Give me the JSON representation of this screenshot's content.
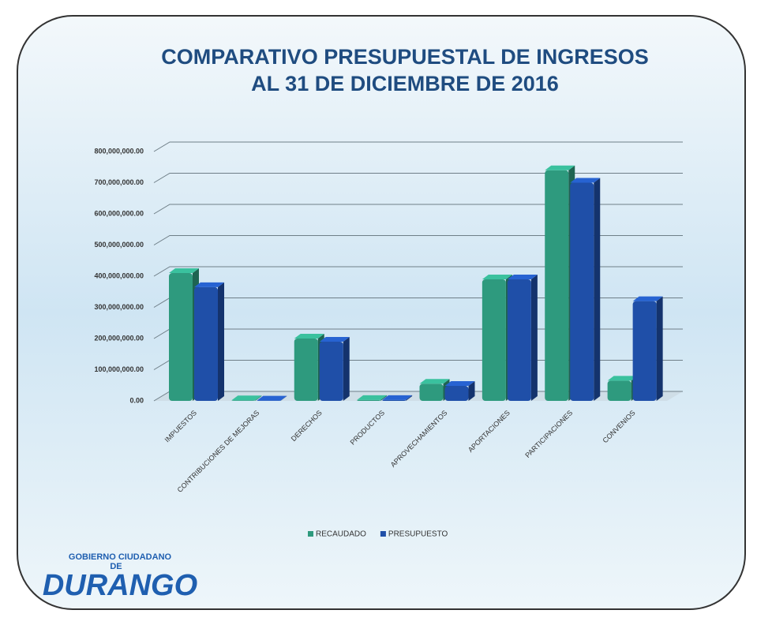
{
  "chart_data": {
    "type": "bar3d",
    "title": [
      "COMPARATIVO PRESUPUESTAL DE INGRESOS",
      "AL 31 DE DICIEMBRE DE 2016"
    ],
    "categories": [
      "IMPUESTOS",
      "CONTRIBUCIONES DE MEJORAS",
      "DERECHOS",
      "PRODUCTOS",
      "APROVECHAMIENTOS",
      "APORTACIONES",
      "PARTICIPACIONES",
      "CONVENIOS"
    ],
    "series": [
      {
        "name": "RECAUDADO",
        "color": "#2e9a7e",
        "values": [
          410000000,
          2000000,
          200000000,
          3000000,
          55000000,
          390000000,
          740000000,
          65000000
        ]
      },
      {
        "name": "PRESUPUESTO",
        "color": "#1f4fa8",
        "values": [
          365000000,
          1000000,
          190000000,
          3000000,
          48000000,
          390000000,
          700000000,
          320000000
        ]
      }
    ],
    "ylim": [
      0,
      800000000
    ],
    "yticks": [
      {
        "value": 0,
        "label": "0.00"
      },
      {
        "value": 100000000,
        "label": "100,000,000.00"
      },
      {
        "value": 200000000,
        "label": "200,000,000.00"
      },
      {
        "value": 300000000,
        "label": "300,000,000.00"
      },
      {
        "value": 400000000,
        "label": "400,000,000.00"
      },
      {
        "value": 500000000,
        "label": "500,000,000.00"
      },
      {
        "value": 600000000,
        "label": "600,000,000.00"
      },
      {
        "value": 700000000,
        "label": "700,000,000.00"
      },
      {
        "value": 800000000,
        "label": "800,000,000.00"
      }
    ],
    "grid": true,
    "legend": "bottom"
  },
  "logo": {
    "line1": "GOBIERNO CIUDADANO",
    "small": "DE",
    "line2": "DURANGO"
  }
}
